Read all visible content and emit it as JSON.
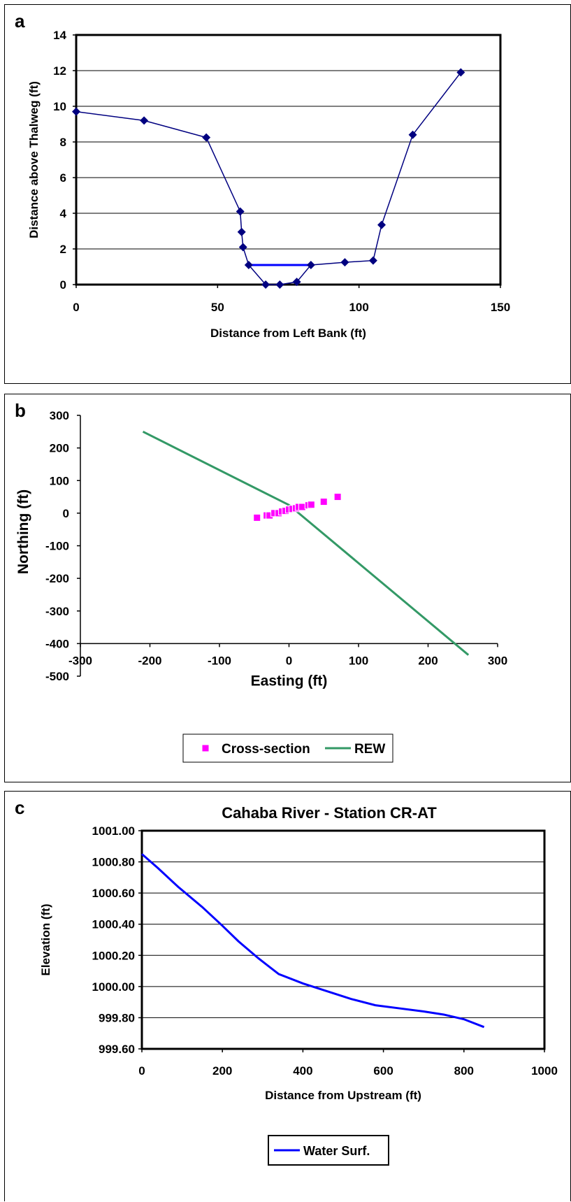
{
  "chart_data": [
    {
      "panel_label": "a",
      "type": "line",
      "title": "",
      "xlabel": "Distance from Left Bank (ft)",
      "ylabel": "Distance above Thalweg (ft)",
      "xlim": [
        0,
        150
      ],
      "ylim": [
        0,
        14
      ],
      "xticks": [
        0,
        50,
        100,
        150
      ],
      "yticks": [
        0,
        2,
        4,
        6,
        8,
        10,
        12,
        14
      ],
      "grid": "horizontal",
      "legend": "none",
      "colors": {
        "series": "#000080",
        "water": "#0000ff"
      },
      "series": [
        {
          "name": "",
          "marker": "diamond",
          "x": [
            0,
            24,
            46,
            58,
            58.5,
            59,
            61,
            67,
            72,
            78,
            83,
            95,
            105,
            108,
            119,
            136
          ],
          "y": [
            9.7,
            9.2,
            8.25,
            4.1,
            2.95,
            2.1,
            1.1,
            0.0,
            0.0,
            0.15,
            1.1,
            1.25,
            1.35,
            3.35,
            8.4,
            11.9
          ]
        },
        {
          "name": "",
          "marker": "none",
          "x": [
            61,
            83
          ],
          "y": [
            1.1,
            1.1
          ]
        }
      ]
    },
    {
      "panel_label": "b",
      "type": "scatter",
      "title": "",
      "xlabel": "Easting (ft)",
      "ylabel": "Northing (ft)",
      "xlim": [
        -300,
        300
      ],
      "ylim": [
        -500,
        300
      ],
      "xticks": [
        -300,
        -200,
        -100,
        0,
        100,
        200,
        300
      ],
      "yticks": [
        -500,
        -400,
        -300,
        -200,
        -100,
        0,
        100,
        200,
        300
      ],
      "xtick_labels": [
        "-300",
        "-200",
        "-100",
        "0",
        "100",
        "200",
        "300"
      ],
      "ytick_labels": [
        "-500",
        "-400",
        "-300",
        "-200",
        "-100",
        "0",
        "100",
        "200",
        "300"
      ],
      "grid": "none",
      "legend": "bottom",
      "colors": {
        "cross_section": "#ff00ff",
        "rew": "#339966"
      },
      "series": [
        {
          "name": "Cross-section",
          "marker": "square",
          "x": [
            -46,
            -32,
            -28,
            -21,
            -15,
            -10,
            -5,
            0,
            5,
            10,
            14,
            19,
            28,
            32,
            50,
            70
          ],
          "y": [
            -14,
            -7,
            -7,
            0,
            0,
            5,
            7,
            11,
            13,
            15,
            19,
            19,
            24,
            26,
            35,
            50
          ]
        },
        {
          "name": "REW",
          "marker": "none",
          "x": [
            -210,
            0,
            258
          ],
          "y": [
            250,
            25,
            -435
          ]
        }
      ]
    },
    {
      "panel_label": "c",
      "type": "line",
      "title": "Cahaba River - Station CR-AT",
      "xlabel": "Distance from Upstream (ft)",
      "ylabel": "Elevation (ft)",
      "xlim": [
        0,
        1000
      ],
      "ylim": [
        999.6,
        1001.0
      ],
      "xticks": [
        0,
        200,
        400,
        600,
        800,
        1000
      ],
      "yticks": [
        999.6,
        999.8,
        1000.0,
        1000.2,
        1000.4,
        1000.6,
        1000.8,
        1001.0
      ],
      "ytick_labels": [
        "999.60",
        "999.80",
        "1000.00",
        "1000.20",
        "1000.40",
        "1000.60",
        "1000.80",
        "1001.00"
      ],
      "grid": "horizontal",
      "legend": "bottom",
      "colors": {
        "series": "#0000ff"
      },
      "series": [
        {
          "name": "Water Surf.",
          "marker": "none",
          "x": [
            0,
            40,
            90,
            150,
            200,
            240,
            290,
            340,
            400,
            460,
            520,
            580,
            640,
            700,
            750,
            800,
            850
          ],
          "y": [
            1000.85,
            1000.76,
            1000.64,
            1000.51,
            1000.39,
            1000.29,
            1000.18,
            1000.08,
            1000.02,
            999.97,
            999.92,
            999.88,
            999.86,
            999.84,
            999.82,
            999.79,
            999.74
          ]
        }
      ]
    }
  ]
}
